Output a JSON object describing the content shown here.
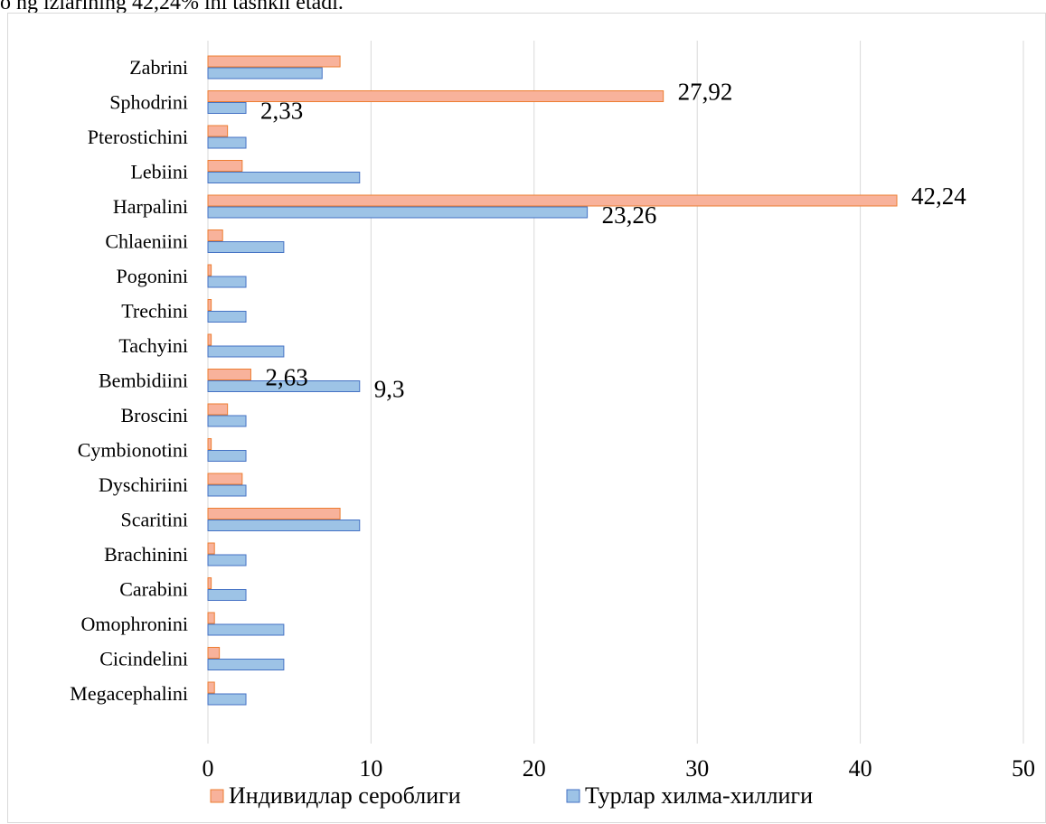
{
  "page": {
    "top_text": "o ng izlarining 42,24% ini tashkil etadi."
  },
  "chart_data": {
    "type": "bar",
    "orientation": "horizontal",
    "categories": [
      "Zabrini",
      "Sphodrini",
      "Pterostichini",
      "Lebiini",
      "Harpalini",
      "Chlaeniini",
      "Pogonini",
      "Trechini",
      "Tachyini",
      "Bembidiini",
      "Broscini",
      "Cymbionotini",
      "Dyschiriini",
      "Scaritini",
      "Brachinini",
      "Carabini",
      "Omophronini",
      "Cicindelini",
      "Megacephalini"
    ],
    "series": [
      {
        "name": "Индивидлар сероблиги",
        "color": "#f8b29b",
        "stroke": "#ed7d31",
        "values": [
          8.1,
          27.92,
          1.2,
          2.1,
          42.24,
          0.9,
          0.2,
          0.2,
          0.2,
          2.63,
          1.2,
          0.2,
          2.1,
          8.1,
          0.4,
          0.2,
          0.4,
          0.7,
          0.4
        ]
      },
      {
        "name": "Турлар хилма-хиллиги",
        "color": "#9dc3e6",
        "stroke": "#4472c4",
        "values": [
          7.0,
          2.33,
          2.33,
          9.3,
          23.26,
          4.65,
          2.33,
          2.33,
          4.65,
          9.3,
          2.33,
          2.33,
          2.33,
          9.3,
          2.33,
          2.33,
          4.65,
          4.65,
          2.33
        ]
      }
    ],
    "data_labels": [
      {
        "category": "Sphodrini",
        "series": 0,
        "text": "27,92"
      },
      {
        "category": "Sphodrini",
        "series": 1,
        "text": "2,33"
      },
      {
        "category": "Harpalini",
        "series": 0,
        "text": "42,24"
      },
      {
        "category": "Harpalini",
        "series": 1,
        "text": "23,26"
      },
      {
        "category": "Bembidiini",
        "series": 0,
        "text": "2,63"
      },
      {
        "category": "Bembidiini",
        "series": 1,
        "text": "9,3"
      }
    ],
    "xlim": [
      0,
      50
    ],
    "xticks": [
      0,
      10,
      20,
      30,
      40,
      50
    ],
    "grid": true,
    "legend_position": "bottom"
  }
}
